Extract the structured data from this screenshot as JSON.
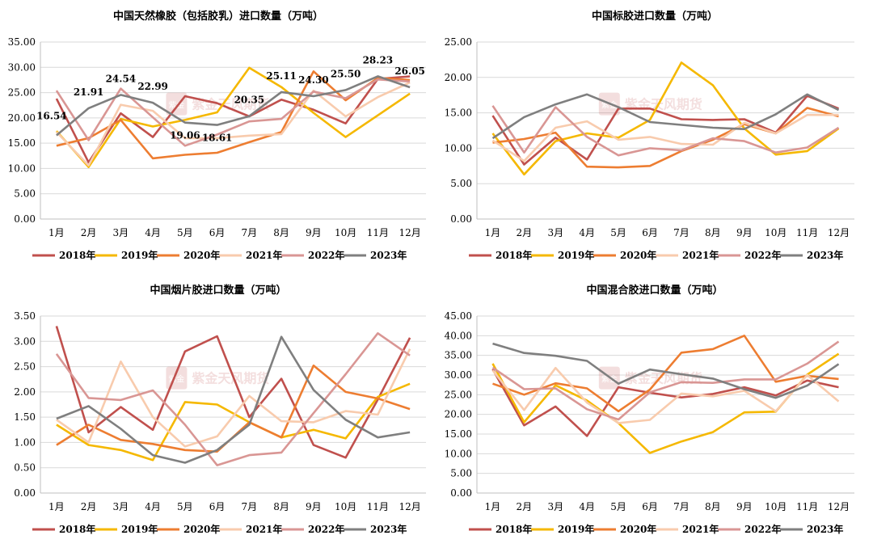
{
  "chart_data": [
    {
      "type": "line",
      "title": "中国天然橡胶（包括胶乳）进口数量（万吨）",
      "categories": [
        "1月",
        "2月",
        "3月",
        "4月",
        "5月",
        "6月",
        "7月",
        "8月",
        "9月",
        "10月",
        "11月",
        "12月"
      ],
      "ylim": [
        0,
        35
      ],
      "ytick_step": 5,
      "ytick_labels": [
        "0.00",
        "5.00",
        "10.00",
        "15.00",
        "20.00",
        "25.00",
        "30.00",
        "35.00"
      ],
      "series": [
        {
          "name": "2018年",
          "values": [
            23.8,
            11.2,
            20.9,
            16.2,
            24.3,
            22.9,
            20.3,
            23.6,
            21.6,
            18.9,
            27.7,
            28.2
          ]
        },
        {
          "name": "2019年",
          "values": [
            17.4,
            10.3,
            19.8,
            18.3,
            19.6,
            21.1,
            29.9,
            26.1,
            21.0,
            16.2,
            20.5,
            24.8
          ]
        },
        {
          "name": "2020年",
          "values": [
            14.5,
            16.0,
            19.6,
            12.0,
            12.7,
            13.1,
            15.2,
            17.2,
            29.2,
            23.5,
            27.9,
            27.5
          ]
        },
        {
          "name": "2021年",
          "values": [
            17.2,
            10.6,
            22.6,
            21.4,
            16.0,
            16.0,
            16.5,
            16.8,
            25.4,
            20.3,
            24.1,
            27.0
          ]
        },
        {
          "name": "2022年",
          "values": [
            25.4,
            15.6,
            25.8,
            20.1,
            14.5,
            16.7,
            19.3,
            19.8,
            25.2,
            23.9,
            27.6,
            27.2
          ]
        },
        {
          "name": "2023年",
          "values": [
            16.54,
            21.91,
            24.54,
            22.99,
            19.06,
            18.61,
            20.35,
            25.11,
            24.3,
            25.5,
            28.23,
            26.05
          ]
        }
      ],
      "data_labels": {
        "series": "2023年",
        "labels": [
          "16.54",
          "21.91",
          "24.54",
          "22.99",
          "19.06",
          "18.61",
          "20.35",
          "25.11",
          "24.30",
          "25.50",
          "28.23",
          "26.05"
        ]
      }
    },
    {
      "type": "line",
      "title": "中国标胶进口数量（万吨）",
      "categories": [
        "1月",
        "2月",
        "3月",
        "4月",
        "5月",
        "6月",
        "7月",
        "8月",
        "9月",
        "10月",
        "11月",
        "12月"
      ],
      "ylim": [
        0,
        25
      ],
      "ytick_step": 5,
      "ytick_labels": [
        "0.00",
        "5.00",
        "10.00",
        "15.00",
        "20.00",
        "25.00"
      ],
      "series": [
        {
          "name": "2018年",
          "values": [
            14.6,
            7.7,
            11.5,
            8.4,
            15.6,
            15.6,
            14.1,
            14.0,
            14.1,
            12.2,
            17.4,
            15.6
          ]
        },
        {
          "name": "2019年",
          "values": [
            12.1,
            6.3,
            11.0,
            12.1,
            11.5,
            14.0,
            22.1,
            18.9,
            12.8,
            9.1,
            9.6,
            12.8
          ]
        },
        {
          "name": "2020年",
          "values": [
            10.8,
            11.3,
            12.2,
            7.4,
            7.3,
            7.5,
            9.6,
            11.2,
            13.4,
            12.1,
            15.7,
            14.5
          ]
        },
        {
          "name": "2021年",
          "values": [
            11.1,
            8.2,
            12.9,
            13.8,
            11.2,
            11.6,
            10.6,
            10.5,
            13.6,
            12.1,
            14.7,
            14.7
          ]
        },
        {
          "name": "2022年",
          "values": [
            16.0,
            9.4,
            15.8,
            11.6,
            9.0,
            10.0,
            9.7,
            11.4,
            11.0,
            9.4,
            10.1,
            12.9
          ]
        },
        {
          "name": "2023年",
          "values": [
            11.4,
            14.4,
            16.2,
            17.6,
            15.8,
            13.7,
            13.3,
            12.9,
            12.7,
            14.8,
            17.6,
            15.4
          ]
        }
      ]
    },
    {
      "type": "line",
      "title": "中国烟片胶进口数量（万吨）",
      "categories": [
        "1月",
        "2月",
        "3月",
        "4月",
        "5月",
        "6月",
        "7月",
        "8月",
        "9月",
        "10月",
        "11月",
        "12月"
      ],
      "ylim": [
        0,
        3.5
      ],
      "ytick_step": 0.5,
      "ytick_labels": [
        "0.00",
        "0.50",
        "1.00",
        "1.50",
        "2.00",
        "2.50",
        "3.00",
        "3.50"
      ],
      "series": [
        {
          "name": "2018年",
          "values": [
            3.3,
            1.2,
            1.7,
            1.25,
            2.8,
            3.1,
            1.5,
            2.26,
            0.95,
            0.7,
            1.85,
            3.07
          ]
        },
        {
          "name": "2019年",
          "values": [
            1.35,
            0.95,
            0.85,
            0.65,
            1.8,
            1.75,
            1.4,
            1.1,
            1.25,
            1.08,
            1.9,
            2.16
          ]
        },
        {
          "name": "2020年",
          "values": [
            0.95,
            1.35,
            1.05,
            0.97,
            0.85,
            0.82,
            1.4,
            1.1,
            2.52,
            2.0,
            1.87,
            1.66
          ]
        },
        {
          "name": "2021年",
          "values": [
            1.45,
            1.0,
            2.6,
            1.5,
            0.92,
            1.12,
            1.92,
            1.42,
            1.4,
            1.62,
            1.55,
            2.85
          ]
        },
        {
          "name": "2022年",
          "values": [
            2.75,
            1.88,
            1.84,
            2.03,
            1.35,
            0.55,
            0.75,
            0.8,
            1.58,
            2.35,
            3.16,
            2.72
          ]
        },
        {
          "name": "2023年",
          "values": [
            1.47,
            1.72,
            1.27,
            0.75,
            0.6,
            0.85,
            1.35,
            3.09,
            2.04,
            1.45,
            1.1,
            1.2
          ]
        }
      ]
    },
    {
      "type": "line",
      "title": "中国混合胶进口数量（万吨）",
      "categories": [
        "1月",
        "2月",
        "3月",
        "4月",
        "5月",
        "6月",
        "7月",
        "8月",
        "9月",
        "10月",
        "11月",
        "12月"
      ],
      "ylim": [
        0,
        45
      ],
      "ytick_step": 5,
      "ytick_labels": [
        "0.00",
        "5.00",
        "10.00",
        "15.00",
        "20.00",
        "25.00",
        "30.00",
        "35.00",
        "40.00",
        "45.00"
      ],
      "series": [
        {
          "name": "2018年",
          "values": [
            31.5,
            17.2,
            22.0,
            14.5,
            26.9,
            25.5,
            24.3,
            25.2,
            26.9,
            24.8,
            28.6,
            26.9
          ]
        },
        {
          "name": "2019年",
          "values": [
            32.9,
            18.0,
            27.4,
            23.5,
            17.8,
            10.2,
            13.1,
            15.5,
            20.5,
            20.7,
            30.1,
            35.4
          ]
        },
        {
          "name": "2020年",
          "values": [
            27.8,
            25.0,
            27.9,
            26.6,
            20.8,
            26.3,
            35.7,
            36.6,
            40.0,
            28.3,
            29.8,
            29.0
          ]
        },
        {
          "name": "2021年",
          "values": [
            31.2,
            21.1,
            31.8,
            23.0,
            17.8,
            18.6,
            25.3,
            24.6,
            26.0,
            20.8,
            30.0,
            23.3
          ]
        },
        {
          "name": "2022年",
          "values": [
            31.9,
            26.4,
            26.6,
            21.3,
            18.7,
            25.6,
            28.2,
            28.0,
            28.9,
            28.9,
            32.9,
            38.5
          ]
        },
        {
          "name": "2023年",
          "values": [
            38.0,
            35.6,
            34.9,
            33.6,
            27.8,
            31.4,
            30.2,
            29.1,
            26.4,
            24.2,
            27.3,
            32.8
          ]
        }
      ]
    }
  ],
  "legend": [
    "2018年",
    "2019年",
    "2020年",
    "2021年",
    "2022年",
    "2023年"
  ],
  "series_colors": {
    "2018年": "#c0504d",
    "2019年": "#f5b800",
    "2020年": "#ed7d31",
    "2021年": "#f8cbad",
    "2022年": "#d99694",
    "2023年": "#7f7f7f"
  },
  "watermark": {
    "brand": "紫金天风期货",
    "seal": "紫金"
  }
}
